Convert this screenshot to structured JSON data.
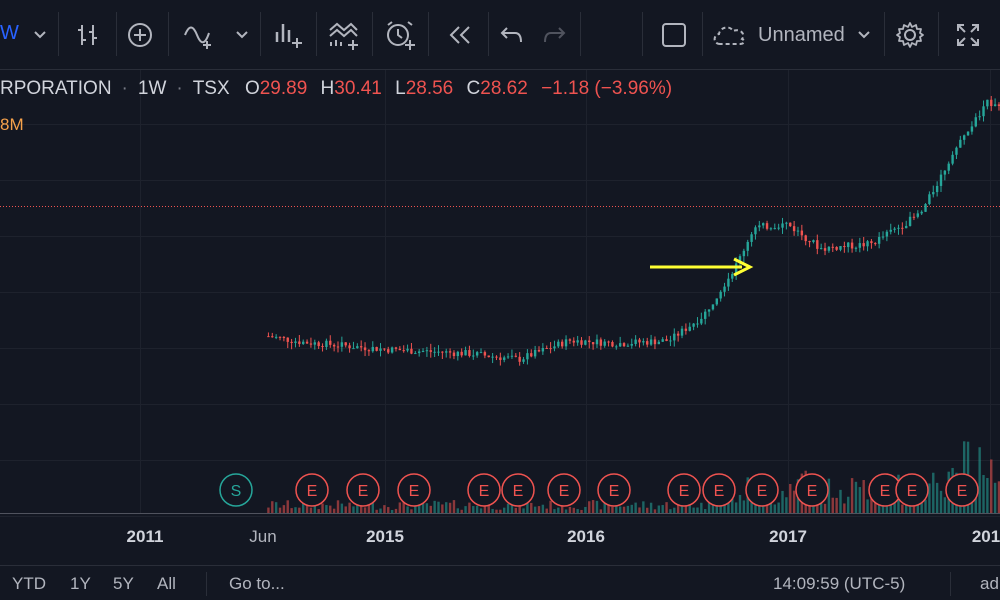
{
  "toolbar": {
    "interval_partial": "W",
    "layout_name": "Unnamed"
  },
  "legend": {
    "symbol": "RPORATION",
    "interval": "1W",
    "exchange": "TSX",
    "open_label": "O",
    "open": "29.89",
    "high_label": "H",
    "high": "30.41",
    "low_label": "L",
    "low": "28.56",
    "close_label": "C",
    "close": "28.62",
    "change": "−1.18 (−3.96%)",
    "volume_partial": "8M"
  },
  "bottom": {
    "ranges": [
      "YTD",
      "1Y",
      "5Y",
      "All"
    ],
    "goto": "Go to...",
    "time": "14:09:59 (UTC-5)",
    "right": "ad"
  },
  "colors": {
    "background": "#131722",
    "up": "#26a69a",
    "down": "#ef5350",
    "arrow": "#ffff33",
    "price_line": "#ef5350"
  },
  "chart_data": {
    "type": "candlestick",
    "interval": "1W",
    "x_ticks": [
      "2011",
      "Jun",
      "2015",
      "2016",
      "2017",
      "201"
    ],
    "event_markers": [
      {
        "label": "S",
        "kind": "split"
      },
      {
        "label": "E",
        "kind": "earnings"
      },
      {
        "label": "E",
        "kind": "earnings"
      },
      {
        "label": "E",
        "kind": "earnings"
      },
      {
        "label": "E",
        "kind": "earnings"
      },
      {
        "label": "E",
        "kind": "earnings"
      },
      {
        "label": "E",
        "kind": "earnings"
      },
      {
        "label": "E",
        "kind": "earnings"
      },
      {
        "label": "E",
        "kind": "earnings"
      },
      {
        "label": "E",
        "kind": "earnings"
      },
      {
        "label": "E",
        "kind": "earnings"
      },
      {
        "label": "E",
        "kind": "earnings"
      },
      {
        "label": "E",
        "kind": "earnings"
      },
      {
        "label": "E",
        "kind": "earnings"
      },
      {
        "label": "E",
        "kind": "earnings"
      }
    ],
    "price_path": [
      {
        "date": "2014-06",
        "price": 12.6
      },
      {
        "date": "2014-08",
        "price": 12.2
      },
      {
        "date": "2014-11",
        "price": 11.9
      },
      {
        "date": "2015-01",
        "price": 11.7
      },
      {
        "date": "2015-06",
        "price": 11.4
      },
      {
        "date": "2015-09",
        "price": 11.0
      },
      {
        "date": "2015-12",
        "price": 12.3
      },
      {
        "date": "2016-03",
        "price": 12.1
      },
      {
        "date": "2016-06",
        "price": 12.3
      },
      {
        "date": "2016-08",
        "price": 14.0
      },
      {
        "date": "2016-10",
        "price": 17.5
      },
      {
        "date": "2016-11",
        "price": 20.0
      },
      {
        "date": "2017-01",
        "price": 20.3
      },
      {
        "date": "2017-03",
        "price": 18.6
      },
      {
        "date": "2017-06",
        "price": 18.9
      },
      {
        "date": "2017-09",
        "price": 21.0
      },
      {
        "date": "2017-11",
        "price": 25.3
      },
      {
        "date": "2018-01",
        "price": 28.6
      }
    ],
    "annotation": {
      "type": "arrow",
      "points_to": "2016-11 peak"
    },
    "grid": true
  }
}
